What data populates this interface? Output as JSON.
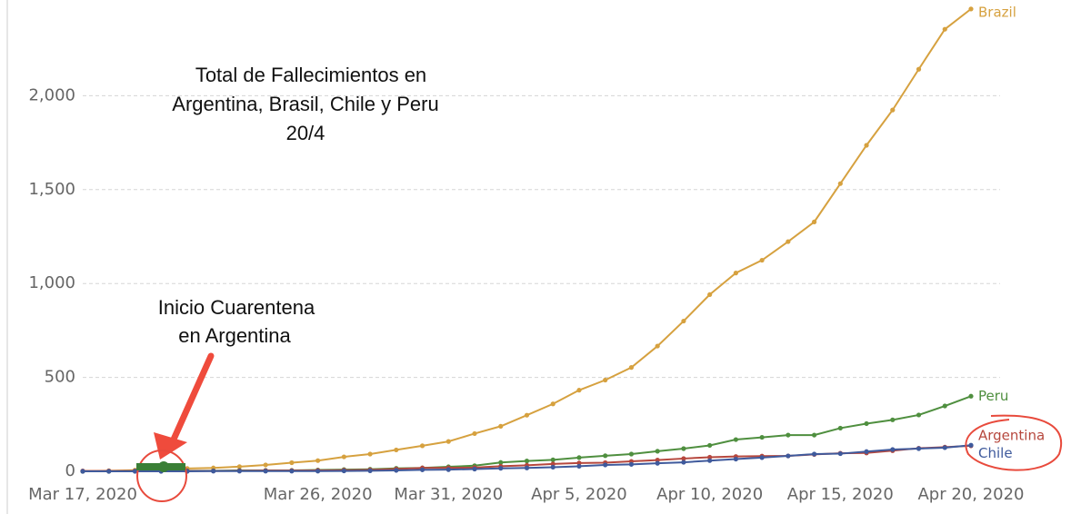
{
  "chart_data": {
    "type": "line",
    "x": [
      "2020-03-17",
      "2020-03-18",
      "2020-03-19",
      "2020-03-20",
      "2020-03-21",
      "2020-03-22",
      "2020-03-23",
      "2020-03-24",
      "2020-03-25",
      "2020-03-26",
      "2020-03-27",
      "2020-03-28",
      "2020-03-29",
      "2020-03-30",
      "2020-03-31",
      "2020-04-01",
      "2020-04-02",
      "2020-04-03",
      "2020-04-04",
      "2020-04-05",
      "2020-04-06",
      "2020-04-07",
      "2020-04-08",
      "2020-04-09",
      "2020-04-10",
      "2020-04-11",
      "2020-04-12",
      "2020-04-13",
      "2020-04-14",
      "2020-04-15",
      "2020-04-16",
      "2020-04-17",
      "2020-04-18",
      "2020-04-19",
      "2020-04-20"
    ],
    "series": [
      {
        "name": "Brazil",
        "color": "#d6a13f",
        "values": [
          1,
          3,
          6,
          11,
          15,
          18,
          25,
          34,
          46,
          57,
          77,
          92,
          114,
          136,
          159,
          201,
          240,
          299,
          359,
          432,
          486,
          553,
          667,
          800,
          941,
          1056,
          1124,
          1223,
          1328,
          1532,
          1736,
          1924,
          2141,
          2354,
          2462
        ]
      },
      {
        "name": "Peru",
        "color": "#4f8f3f",
        "values": [
          0,
          0,
          2,
          2,
          3,
          3,
          5,
          5,
          5,
          7,
          9,
          11,
          16,
          18,
          24,
          30,
          47,
          55,
          61,
          73,
          83,
          92,
          107,
          121,
          138,
          169,
          181,
          193,
          193,
          230,
          254,
          274,
          300,
          348,
          400
        ]
      },
      {
        "name": "Argentina",
        "color": "#b6473d",
        "values": [
          2,
          2,
          2,
          2,
          2,
          2,
          3,
          4,
          4,
          5,
          6,
          8,
          12,
          18,
          19,
          20,
          27,
          32,
          39,
          44,
          46,
          53,
          60,
          68,
          75,
          79,
          81,
          82,
          90,
          96,
          98,
          110,
          123,
          129,
          136
        ]
      },
      {
        "name": "Chile",
        "color": "#3f5a9c",
        "values": [
          0,
          0,
          0,
          0,
          0,
          1,
          1,
          1,
          1,
          1,
          2,
          3,
          5,
          8,
          9,
          12,
          16,
          18,
          22,
          27,
          34,
          37,
          43,
          48,
          57,
          65,
          73,
          82,
          92,
          94,
          105,
          116,
          121,
          126,
          139
        ]
      }
    ],
    "xlim": [
      "2020-03-17",
      "2020-04-20"
    ],
    "xticks": [
      {
        "value": "2020-03-17",
        "label": "Mar 17, 2020"
      },
      {
        "value": "2020-03-26",
        "label": "Mar 26, 2020"
      },
      {
        "value": "2020-03-31",
        "label": "Mar 31, 2020"
      },
      {
        "value": "2020-04-05",
        "label": "Apr 5, 2020"
      },
      {
        "value": "2020-04-10",
        "label": "Apr 10, 2020"
      },
      {
        "value": "2020-04-15",
        "label": "Apr 15, 2020"
      },
      {
        "value": "2020-04-20",
        "label": "Apr 20, 2020"
      }
    ],
    "ylim": [
      0,
      2500
    ],
    "yticks": [
      0,
      500,
      {
        "value": 1000,
        "label": "1,000"
      },
      {
        "value": 1500,
        "label": "1,500"
      },
      {
        "value": 2000,
        "label": "2,000"
      }
    ],
    "grid": true,
    "annotations": [
      {
        "lines": [
          "Total de Fallecimientos en",
          "Argentina, Brasil, Chile y Peru",
          "20/4"
        ]
      },
      {
        "lines": [
          "Inicio Cuarentena",
          "en Argentina"
        ]
      }
    ]
  }
}
